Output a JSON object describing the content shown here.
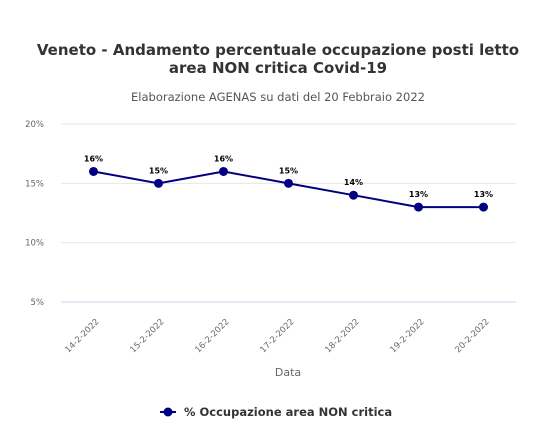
{
  "chart_data": {
    "type": "line",
    "title_line1": "Veneto - Andamento percentuale occupazione posti letto",
    "title_line2": "area NON critica Covid-19",
    "subtitle": "Elaborazione AGENAS su dati del 20 Febbraio 2022",
    "xlabel": "Data",
    "ylabel": "",
    "categories": [
      "14-2-2022",
      "15-2-2022",
      "16-2-2022",
      "17-2-2022",
      "18-2-2022",
      "19-2-2022",
      "20-2-2022"
    ],
    "series": [
      {
        "name": "% Occupazione area NON critica",
        "values": [
          16,
          15,
          16,
          15,
          14,
          13,
          13
        ],
        "labels": [
          "16%",
          "15%",
          "16%",
          "15%",
          "14%",
          "13%",
          "13%"
        ],
        "color": "#000080"
      }
    ],
    "ylim": [
      5,
      20
    ],
    "yticks": [
      5,
      10,
      15,
      20
    ],
    "ytick_labels": [
      "5%",
      "10%",
      "15%",
      "20%"
    ],
    "grid": true,
    "legend": "bottom-center",
    "colors": {
      "grid": "#e6e6e6",
      "baseline": "#ccd6eb"
    }
  }
}
